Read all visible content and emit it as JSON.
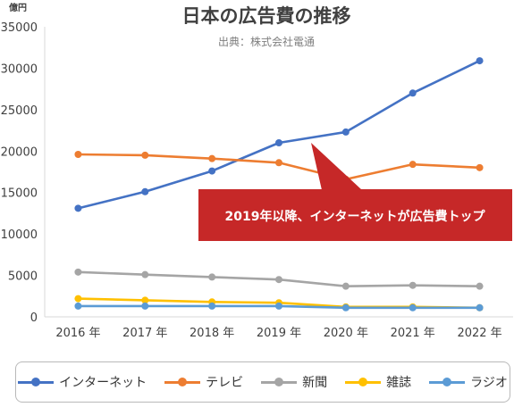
{
  "chart_data": {
    "type": "line",
    "title": "日本の広告費の推移",
    "subtitle": "出典：株式会社電通",
    "ylabel": "億円",
    "xlabel": "",
    "categories": [
      "2016 年",
      "2017 年",
      "2018 年",
      "2019 年",
      "2020 年",
      "2021 年",
      "2022 年"
    ],
    "ylim": [
      0,
      35000
    ],
    "yticks": [
      0,
      5000,
      10000,
      15000,
      20000,
      25000,
      30000,
      35000
    ],
    "grid": false,
    "legend_position": "bottom",
    "series": [
      {
        "name": "インターネット",
        "color": "#4472c4",
        "values": [
          13100,
          15100,
          17600,
          21000,
          22300,
          27000,
          30900
        ]
      },
      {
        "name": "テレビ",
        "color": "#ed7d31",
        "values": [
          19600,
          19500,
          19100,
          18600,
          16600,
          18400,
          18000
        ]
      },
      {
        "name": "新聞",
        "color": "#a5a5a5",
        "values": [
          5400,
          5100,
          4800,
          4500,
          3700,
          3800,
          3700
        ]
      },
      {
        "name": "雑誌",
        "color": "#ffc000",
        "values": [
          2200,
          2000,
          1800,
          1700,
          1200,
          1200,
          1100
        ]
      },
      {
        "name": "ラジオ",
        "color": "#5b9bd5",
        "values": [
          1300,
          1300,
          1300,
          1300,
          1100,
          1100,
          1100
        ]
      }
    ],
    "annotation": {
      "text": "2019年以降、インターネットが広告費トップ",
      "color": "#c62828",
      "text_color": "#ffffff"
    }
  }
}
